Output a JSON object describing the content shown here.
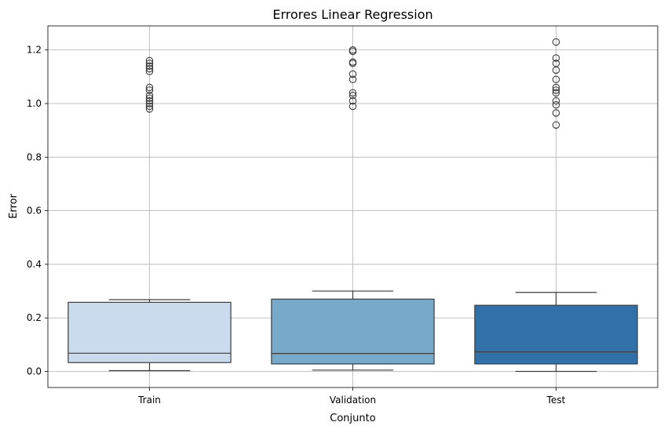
{
  "chart_data": {
    "type": "box",
    "title": "Errores Linear Regression",
    "xlabel": "Conjunto",
    "ylabel": "Error",
    "ylim": [
      -0.06,
      1.29
    ],
    "yticks": [
      0.0,
      0.2,
      0.4,
      0.6,
      0.8,
      1.0,
      1.2
    ],
    "ytick_labels": [
      "0.0",
      "0.2",
      "0.4",
      "0.6",
      "0.8",
      "1.0",
      "1.2"
    ],
    "grid": true,
    "categories": [
      "Train",
      "Validation",
      "Test"
    ],
    "boxes": [
      {
        "name": "Train",
        "color": "#c9dbec",
        "whisker_low": 0.003,
        "q1": 0.033,
        "median": 0.068,
        "q3": 0.258,
        "whisker_high": 0.268,
        "outliers": [
          0.98,
          0.99,
          1.0,
          1.01,
          1.02,
          1.03,
          1.05,
          1.06,
          1.12,
          1.13,
          1.14,
          1.15,
          1.16
        ]
      },
      {
        "name": "Validation",
        "color": "#77a9cb",
        "whisker_low": 0.005,
        "q1": 0.028,
        "median": 0.067,
        "q3": 0.27,
        "whisker_high": 0.3,
        "outliers": [
          0.99,
          1.01,
          1.03,
          1.04,
          1.09,
          1.11,
          1.15,
          1.155,
          1.195,
          1.2
        ]
      },
      {
        "name": "Test",
        "color": "#3170a8",
        "whisker_low": 0.0,
        "q1": 0.028,
        "median": 0.073,
        "q3": 0.247,
        "whisker_high": 0.295,
        "outliers": [
          0.92,
          0.965,
          0.995,
          1.01,
          1.04,
          1.05,
          1.06,
          1.09,
          1.125,
          1.15,
          1.17,
          1.23
        ]
      }
    ]
  }
}
